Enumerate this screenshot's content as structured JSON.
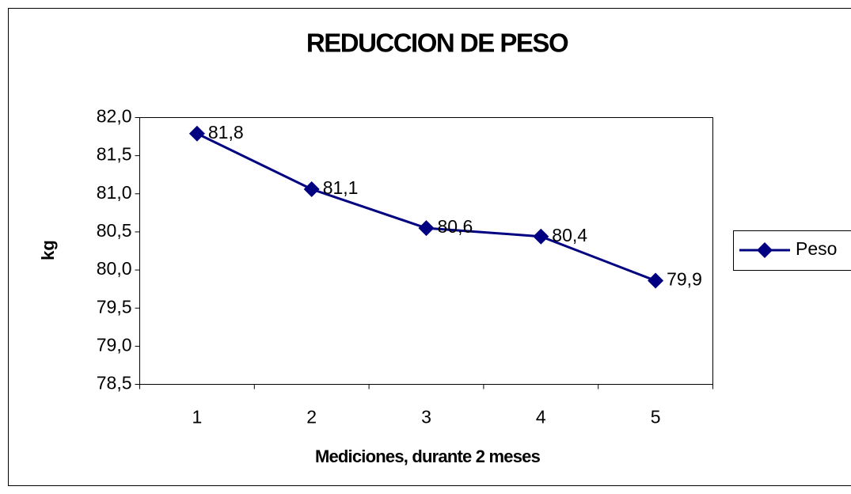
{
  "chart_data": {
    "type": "line",
    "title": "REDUCCION DE PESO",
    "x_label": "Mediciones, durante 2 meses",
    "y_label": "kg",
    "categories": [
      "1",
      "2",
      "3",
      "4",
      "5"
    ],
    "series": [
      {
        "name": "Peso",
        "color": "#000080",
        "values": [
          81.79,
          81.06,
          80.55,
          80.44,
          79.86
        ],
        "value_labels": [
          "81,8",
          "81,1",
          "80,6",
          "80,4",
          "79,9"
        ]
      }
    ],
    "ylim": [
      78.5,
      82.0
    ],
    "yticks": [
      {
        "value": 78.5,
        "label": "78,5"
      },
      {
        "value": 79.0,
        "label": "79,0"
      },
      {
        "value": 79.5,
        "label": "79,5"
      },
      {
        "value": 80.0,
        "label": "80,0"
      },
      {
        "value": 80.5,
        "label": "80,5"
      },
      {
        "value": 81.0,
        "label": "81,0"
      },
      {
        "value": 81.5,
        "label": "81,5"
      },
      {
        "value": 82.0,
        "label": "82,0"
      }
    ],
    "legend": "right"
  }
}
